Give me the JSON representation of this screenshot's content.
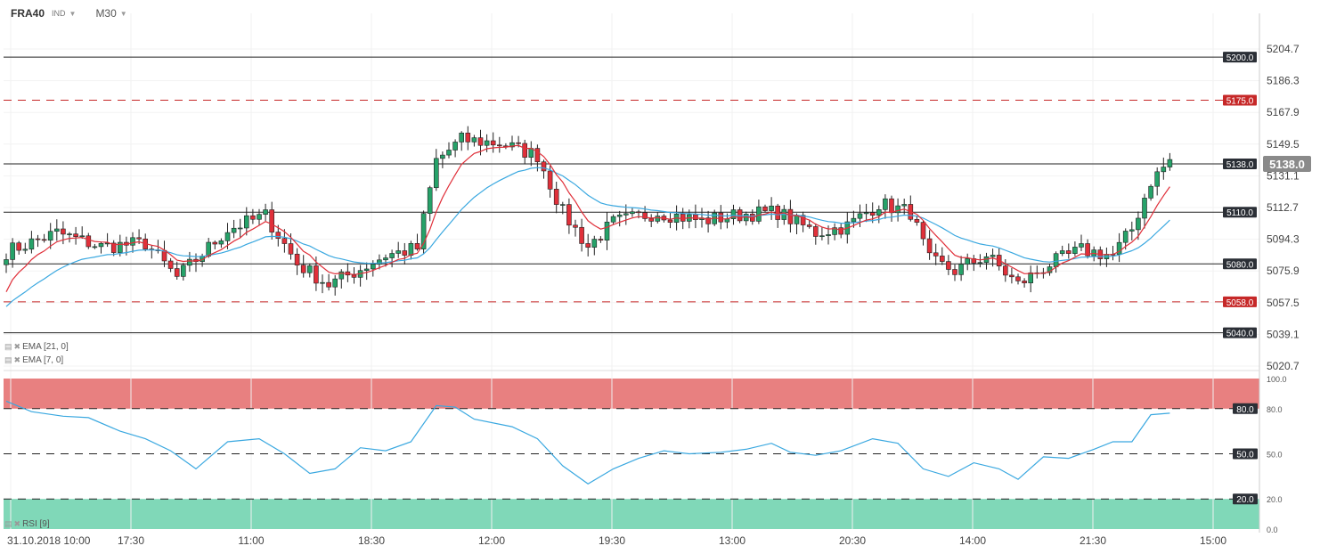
{
  "header": {
    "symbol": "FRA40",
    "type": "IND",
    "timeframe": "M30"
  },
  "colors": {
    "up": "#26a269",
    "down": "#e0303a",
    "ema7": "#e0303a",
    "ema21": "#3aa8e0",
    "rsi": "#3aa8e0",
    "overbought": "#e88080",
    "oversold": "#80d8b8",
    "level_solid": "#222222",
    "level_dashed": "#c62828",
    "current": "#8a8a8a"
  },
  "indicators": {
    "ema21_label": "EMA [21, 0]",
    "ema7_label": "EMA [7, 0]",
    "rsi_label": "RSI [9]"
  },
  "chart_data": {
    "type": "candlestick",
    "price_axis_labels": [
      "5204.7",
      "5186.3",
      "5167.9",
      "5149.5",
      "5131.1",
      "5112.7",
      "5094.3",
      "5075.9",
      "5057.5",
      "5039.1",
      "5020.7"
    ],
    "ylim": [
      5020.7,
      5204.7
    ],
    "time_labels": [
      "31.10.2018  10:00",
      "17:30",
      "11:00",
      "18:30",
      "12:00",
      "19:30",
      "13:00",
      "20:30",
      "14:00",
      "21:30",
      "15:00"
    ],
    "current_price": "5138.0",
    "levels": [
      {
        "price": 5200.0,
        "label": "5200.0",
        "style": "solid"
      },
      {
        "price": 5175.0,
        "label": "5175.0",
        "style": "dashed"
      },
      {
        "price": 5138.0,
        "label": "5138.0",
        "style": "solid"
      },
      {
        "price": 5110.0,
        "label": "5110.0",
        "style": "solid"
      },
      {
        "price": 5080.0,
        "label": "5080.0",
        "style": "solid"
      },
      {
        "price": 5058.0,
        "label": "5058.0",
        "style": "dashed"
      },
      {
        "price": 5040.0,
        "label": "5040.0",
        "style": "solid"
      }
    ],
    "close_anchors": [
      [
        0,
        5087
      ],
      [
        8,
        5098
      ],
      [
        15,
        5090
      ],
      [
        22,
        5092
      ],
      [
        27,
        5072
      ],
      [
        35,
        5100
      ],
      [
        41,
        5108
      ],
      [
        46,
        5080
      ],
      [
        51,
        5068
      ],
      [
        56,
        5077
      ],
      [
        60,
        5085
      ],
      [
        65,
        5089
      ],
      [
        68,
        5140
      ],
      [
        72,
        5152
      ],
      [
        78,
        5150
      ],
      [
        84,
        5143
      ],
      [
        88,
        5110
      ],
      [
        92,
        5090
      ],
      [
        96,
        5104
      ],
      [
        103,
        5110
      ],
      [
        110,
        5105
      ],
      [
        117,
        5109
      ],
      [
        122,
        5110
      ],
      [
        128,
        5098
      ],
      [
        133,
        5102
      ],
      [
        138,
        5115
      ],
      [
        143,
        5110
      ],
      [
        146,
        5082
      ],
      [
        150,
        5076
      ],
      [
        155,
        5085
      ],
      [
        160,
        5068
      ],
      [
        165,
        5080
      ],
      [
        170,
        5088
      ],
      [
        175,
        5085
      ],
      [
        178,
        5100
      ],
      [
        181,
        5128
      ],
      [
        184,
        5140
      ]
    ],
    "candle_count": 185,
    "rsi": {
      "ylim": [
        0,
        100
      ],
      "axis_labels": [
        "100.0",
        "80.0",
        "50.0",
        "20.0",
        "0.0"
      ],
      "levels": [
        {
          "value": 80,
          "label": "80.0"
        },
        {
          "value": 50,
          "label": "50.0"
        },
        {
          "value": 20,
          "label": "20.0"
        }
      ],
      "anchors": [
        [
          0,
          85
        ],
        [
          4,
          78
        ],
        [
          9,
          75
        ],
        [
          13,
          74
        ],
        [
          18,
          65
        ],
        [
          22,
          60
        ],
        [
          26,
          52
        ],
        [
          30,
          40
        ],
        [
          35,
          58
        ],
        [
          40,
          60
        ],
        [
          44,
          50
        ],
        [
          48,
          37
        ],
        [
          52,
          40
        ],
        [
          56,
          54
        ],
        [
          60,
          52
        ],
        [
          64,
          58
        ],
        [
          68,
          82
        ],
        [
          71,
          81
        ],
        [
          74,
          73
        ],
        [
          80,
          68
        ],
        [
          84,
          60
        ],
        [
          88,
          42
        ],
        [
          92,
          30
        ],
        [
          96,
          40
        ],
        [
          100,
          47
        ],
        [
          104,
          52
        ],
        [
          108,
          50
        ],
        [
          113,
          51
        ],
        [
          117,
          53
        ],
        [
          121,
          57
        ],
        [
          124,
          51
        ],
        [
          128,
          49
        ],
        [
          132,
          52
        ],
        [
          137,
          60
        ],
        [
          141,
          57
        ],
        [
          145,
          40
        ],
        [
          149,
          35
        ],
        [
          153,
          44
        ],
        [
          157,
          40
        ],
        [
          160,
          33
        ],
        [
          164,
          48
        ],
        [
          168,
          47
        ],
        [
          172,
          53
        ],
        [
          175,
          58
        ],
        [
          178,
          58
        ],
        [
          181,
          76
        ],
        [
          184,
          77
        ]
      ]
    }
  }
}
